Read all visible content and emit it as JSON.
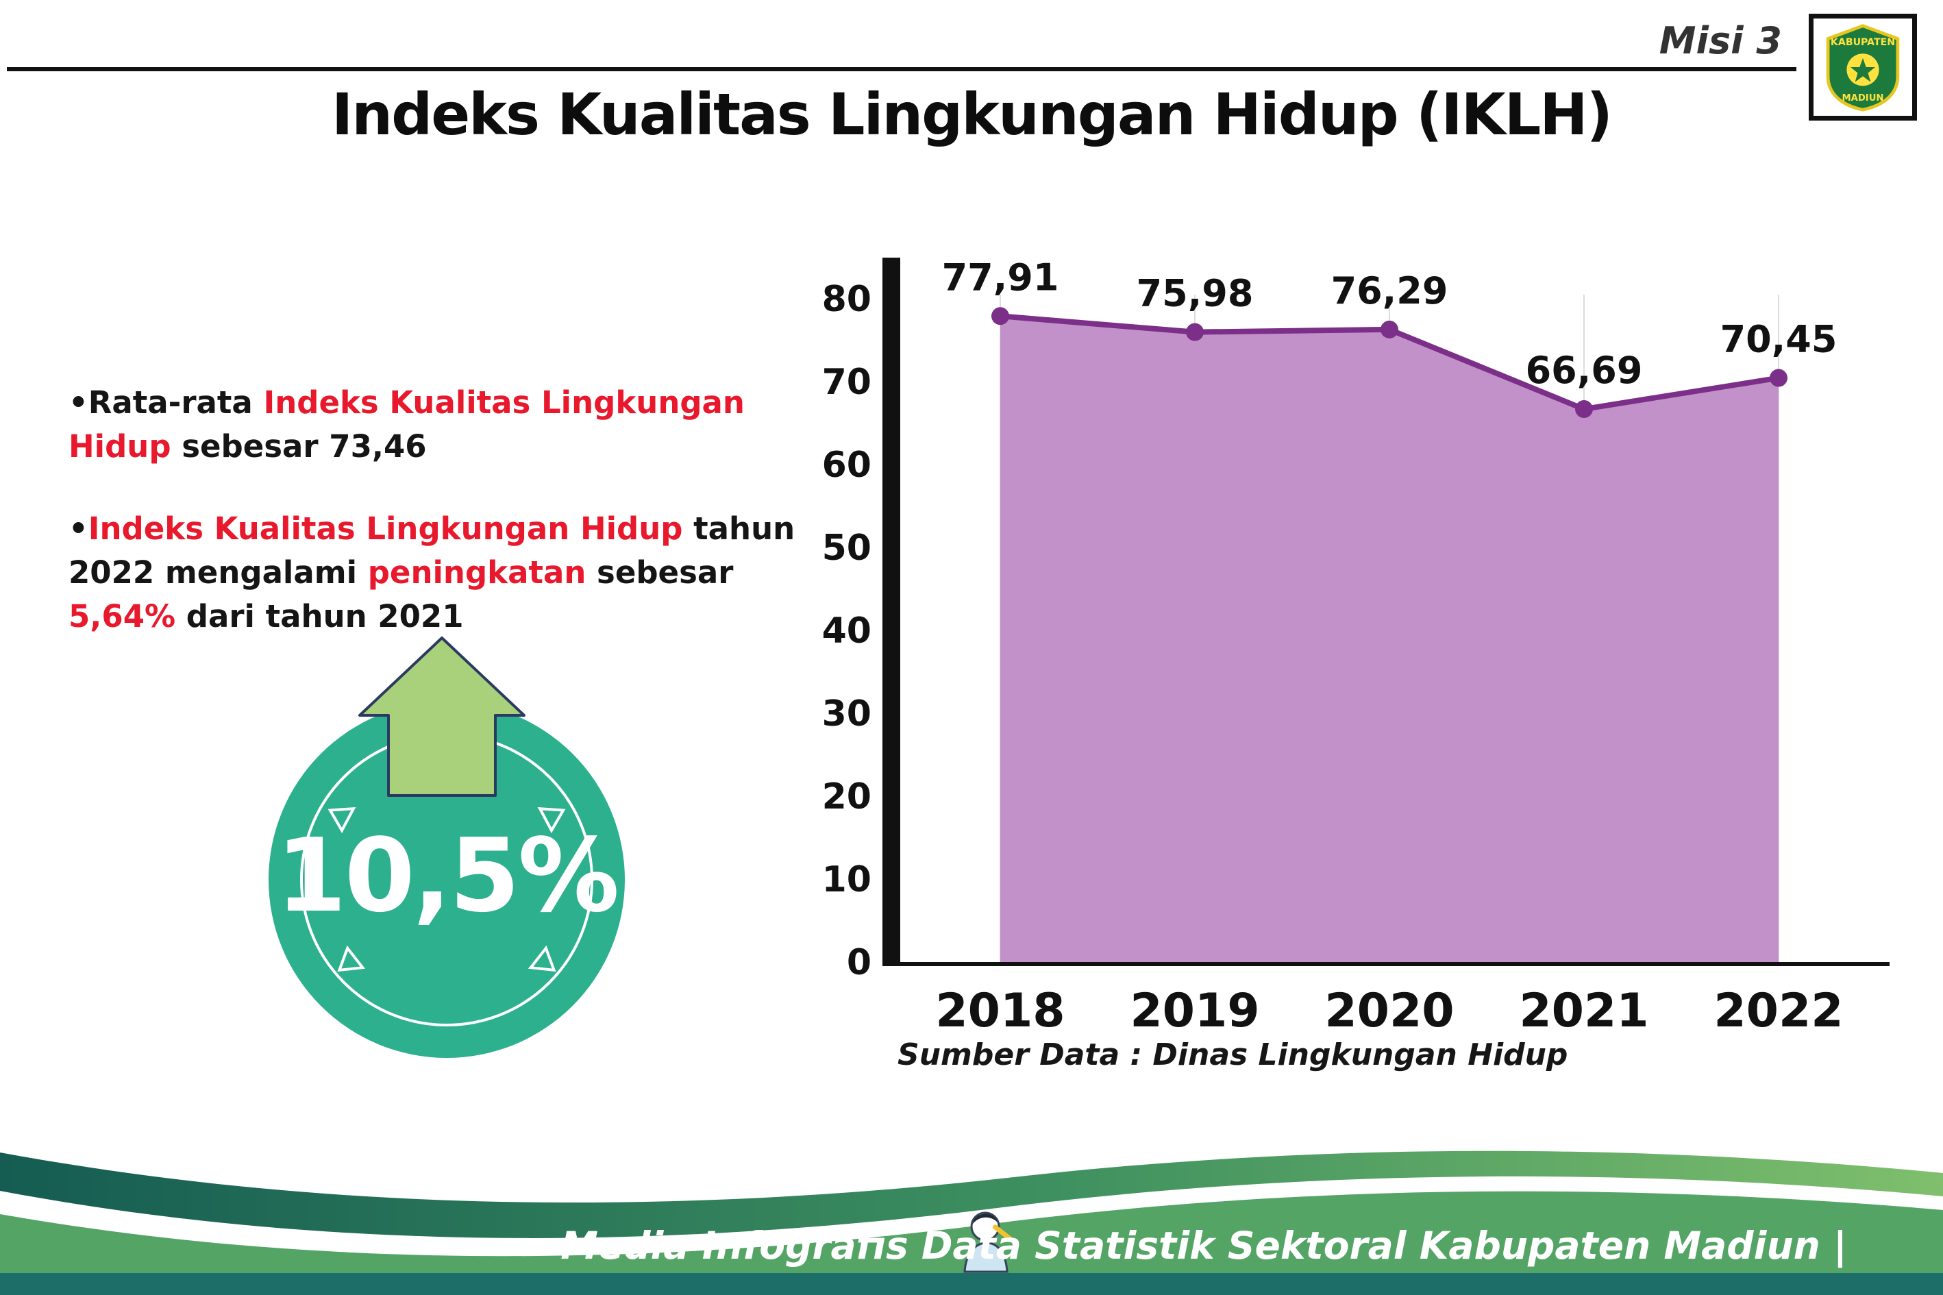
{
  "header": {
    "misi": "Misi 3",
    "title": "Indeks Kualitas Lingkungan Hidup (IKLH)",
    "logo": {
      "top": "KABUPATEN",
      "bottom": "MADIUN"
    }
  },
  "bullets": {
    "dot": "•",
    "b1": {
      "p1": "Rata-rata ",
      "p2": "Indeks Kualitas Lingkungan Hidup",
      "p3": " sebesar 73,46"
    },
    "b2": {
      "p1": "Indeks Kualitas Lingkungan Hidup",
      "p2": " tahun 2022 mengalami ",
      "p3": "peningkatan",
      "p4": " sebesar ",
      "p5": "5,64%",
      "p6": " dari tahun 2021"
    }
  },
  "badge": {
    "value": "10,5%"
  },
  "chart_data": {
    "type": "area",
    "title": "Indeks Kualitas Lingkungan Hidup (IKLH)",
    "categories": [
      "2018",
      "2019",
      "2020",
      "2021",
      "2022"
    ],
    "values": [
      77.91,
      75.98,
      76.29,
      66.69,
      70.45
    ],
    "value_labels": [
      "77,91",
      "75,98",
      "76,29",
      "66,69",
      "70,45"
    ],
    "ylim": [
      0,
      80
    ],
    "yticks": [
      0,
      10,
      20,
      30,
      40,
      50,
      60,
      70,
      80
    ],
    "grid": "light vertical gridlines per year",
    "legend": "none",
    "source": "Sumber Data : Dinas Lingkungan Hidup",
    "colors": {
      "line": "#7c2f88",
      "fill": "#c291ca"
    }
  },
  "colors": {
    "accent_red": "#e8192c",
    "badge_teal": "#2cb08e",
    "arrow_green": "#a9d07b",
    "footer_green": "#54a466",
    "footer_dark_teal": "#155c52",
    "bottom_bar": "#1d6e68"
  },
  "footer": {
    "credit": "Media Infografis Data Statistik Sektoral Kabupaten Madiun |"
  }
}
